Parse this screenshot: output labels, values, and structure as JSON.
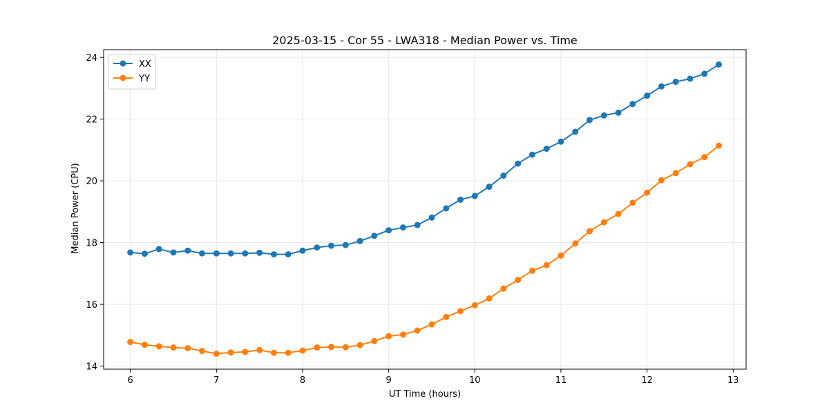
{
  "chart_data": {
    "type": "line",
    "title": "2025-03-15 - Cor 55 - LWA318 - Median Power vs. Time",
    "xlabel": "UT Time (hours)",
    "ylabel": "Median Power (CPU)",
    "xlim": [
      5.69,
      13.15
    ],
    "ylim": [
      13.9,
      24.25
    ],
    "xticks": [
      6,
      7,
      8,
      9,
      10,
      11,
      12,
      13
    ],
    "yticks": [
      14,
      16,
      18,
      20,
      22,
      24
    ],
    "grid": true,
    "legend_position": "upper-left",
    "x": [
      6.0,
      6.167,
      6.333,
      6.5,
      6.667,
      6.833,
      7.0,
      7.167,
      7.333,
      7.5,
      7.667,
      7.833,
      8.0,
      8.167,
      8.333,
      8.5,
      8.667,
      8.833,
      9.0,
      9.167,
      9.333,
      9.5,
      9.667,
      9.833,
      10.0,
      10.167,
      10.333,
      10.5,
      10.667,
      10.833,
      11.0,
      11.167,
      11.333,
      11.5,
      11.667,
      11.833,
      12.0,
      12.167,
      12.333,
      12.5,
      12.667,
      12.833
    ],
    "series": [
      {
        "name": "XX",
        "color": "#1f77b4",
        "values": [
          17.68,
          17.64,
          17.79,
          17.68,
          17.74,
          17.65,
          17.65,
          17.65,
          17.65,
          17.67,
          17.62,
          17.62,
          17.74,
          17.84,
          17.9,
          17.92,
          18.05,
          18.22,
          18.4,
          18.49,
          18.57,
          18.81,
          19.11,
          19.39,
          19.51,
          19.81,
          20.17,
          20.56,
          20.85,
          21.04,
          21.27,
          21.59,
          21.97,
          22.12,
          22.21,
          22.49,
          22.76,
          23.06,
          23.21,
          23.31,
          23.47,
          23.77
        ]
      },
      {
        "name": "YY",
        "color": "#ff7f0e",
        "values": [
          14.78,
          14.69,
          14.64,
          14.6,
          14.58,
          14.49,
          14.4,
          14.44,
          14.46,
          14.52,
          14.43,
          14.43,
          14.5,
          14.6,
          14.62,
          14.61,
          14.68,
          14.81,
          14.97,
          15.02,
          15.15,
          15.35,
          15.59,
          15.78,
          15.97,
          16.19,
          16.51,
          16.79,
          17.09,
          17.27,
          17.58,
          17.97,
          18.37,
          18.66,
          18.93,
          19.29,
          19.62,
          20.02,
          20.25,
          20.54,
          20.77,
          21.14
        ]
      }
    ]
  }
}
